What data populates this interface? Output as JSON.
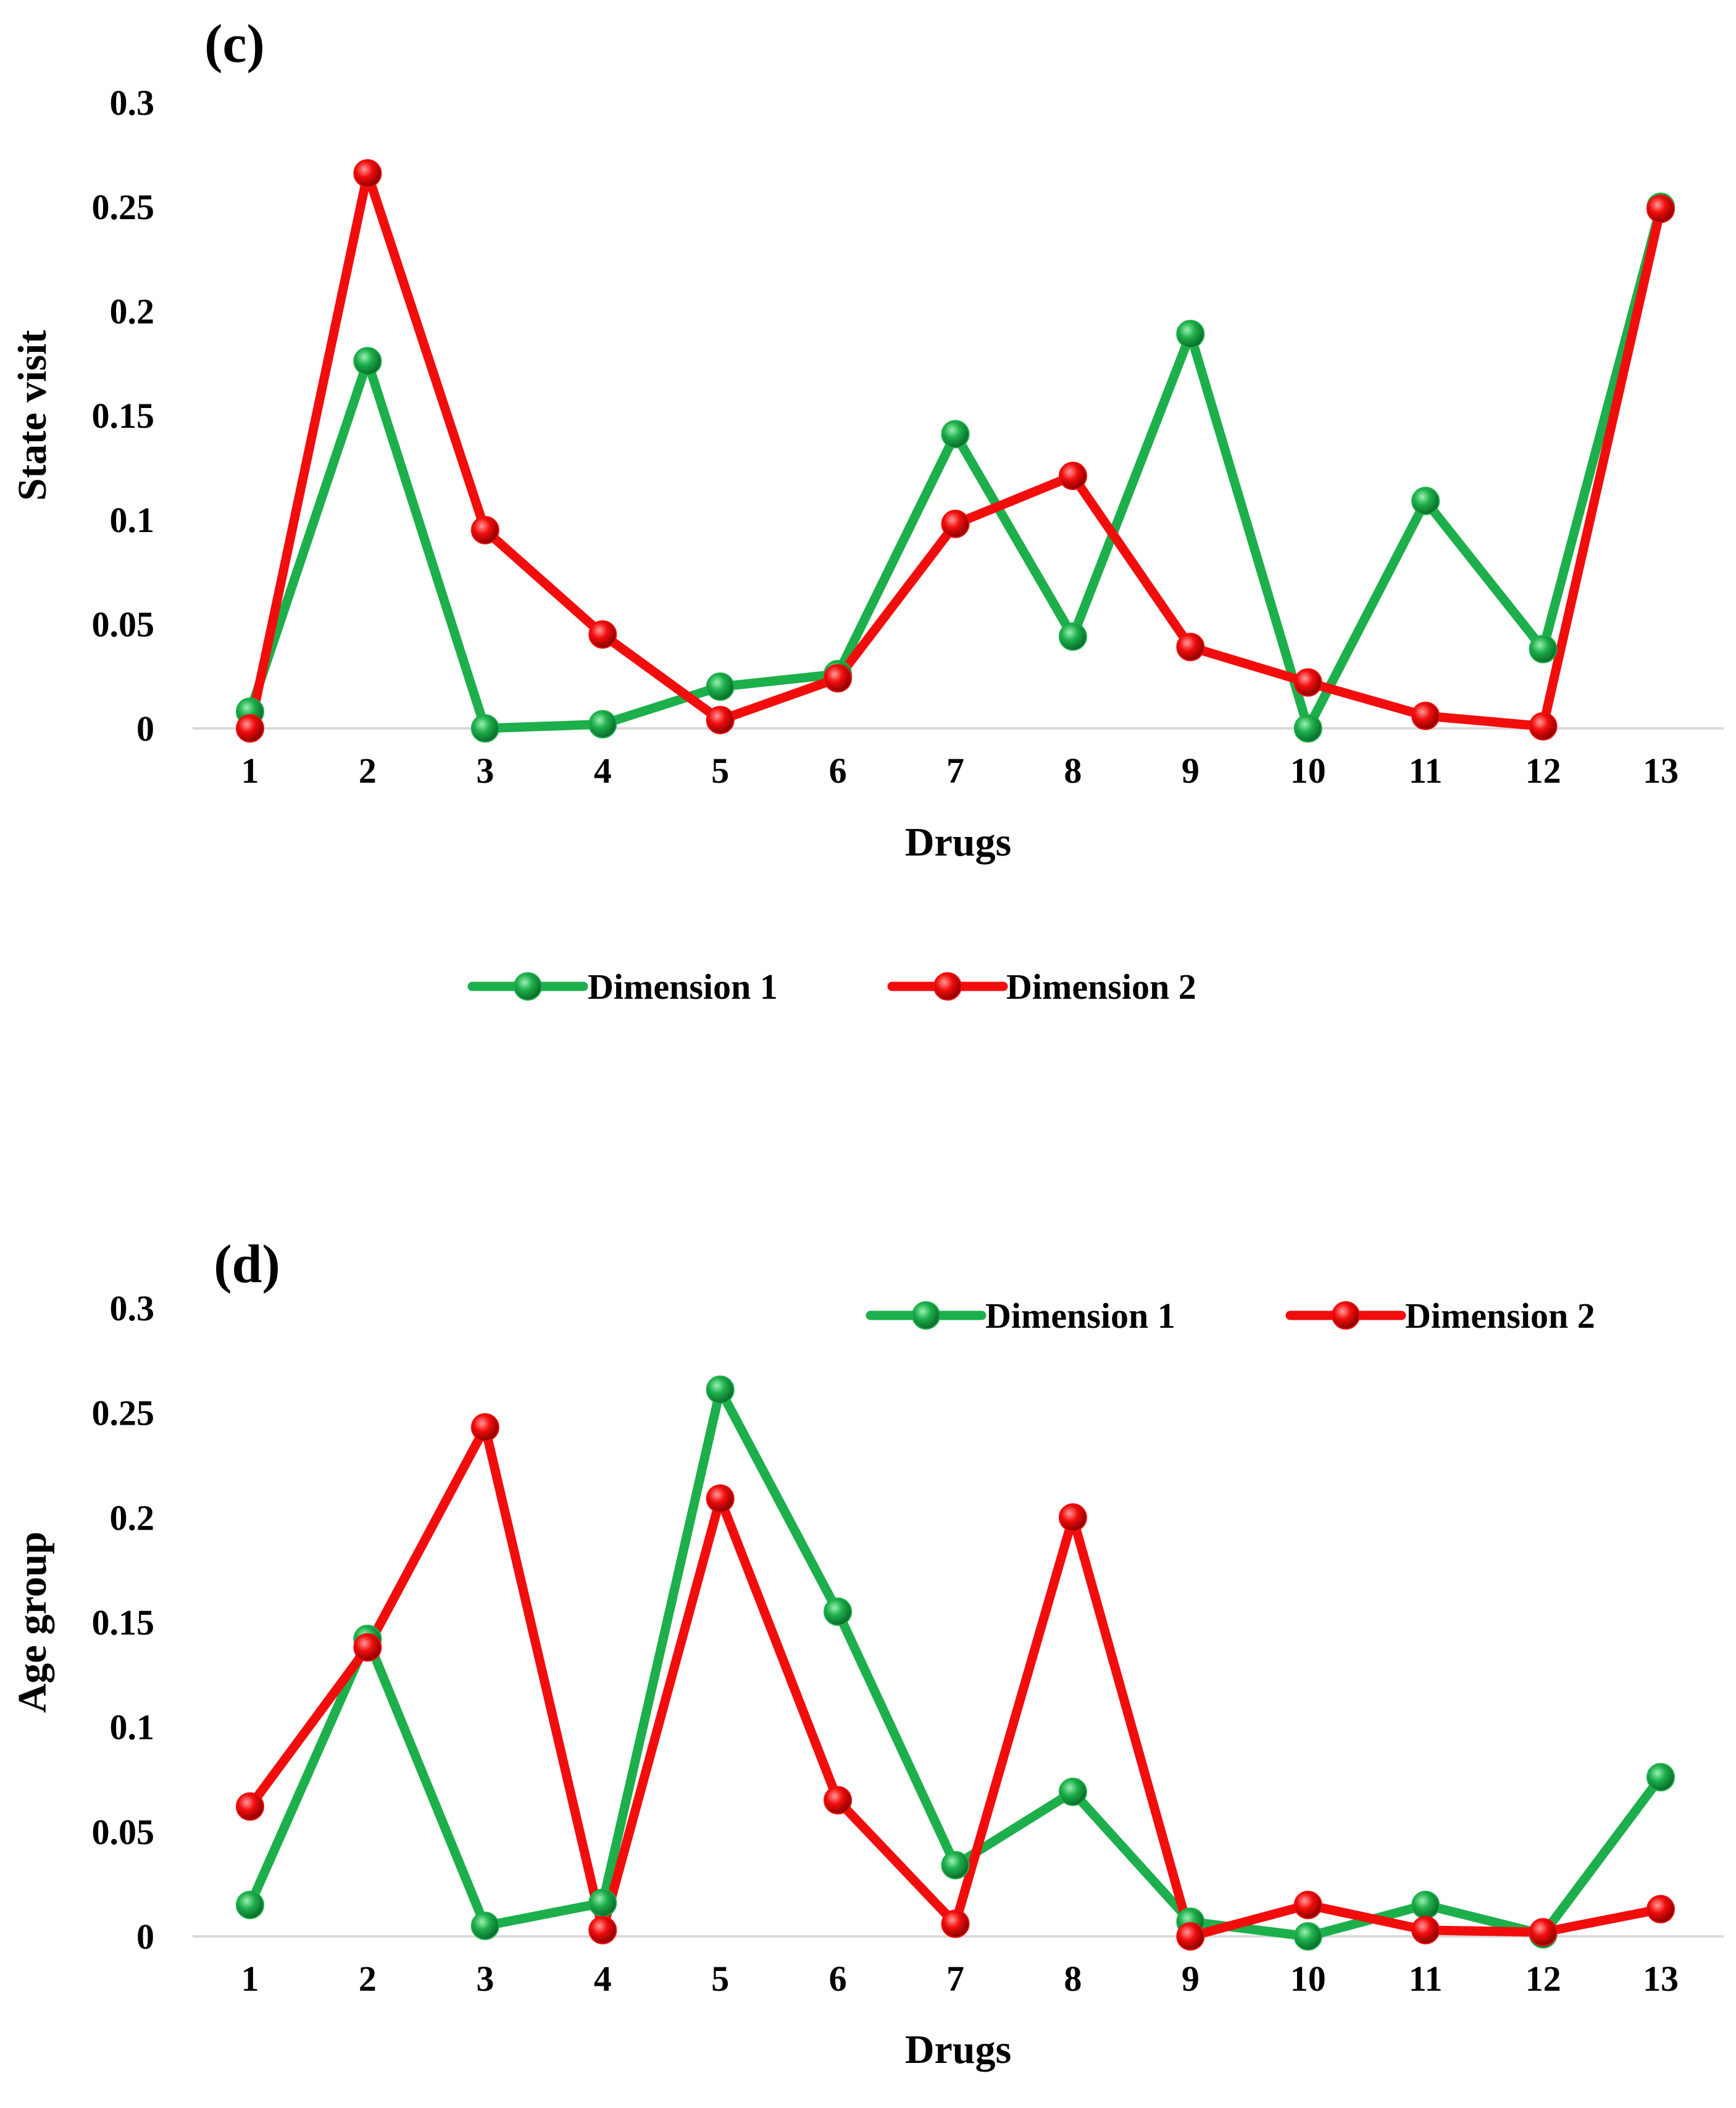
{
  "colors": {
    "dimension1": "#1DAF4B",
    "dimension2": "#F20D0D",
    "axis": "#D9D9D9",
    "text": "#000000"
  },
  "chart_data": [
    {
      "type": "line",
      "panel_label": "(c)",
      "title": "",
      "xlabel": "Drugs",
      "ylabel": "State visit",
      "categories": [
        "1",
        "2",
        "3",
        "4",
        "5",
        "6",
        "7",
        "8",
        "9",
        "10",
        "11",
        "12",
        "13"
      ],
      "yticks": [
        "0",
        "0.05",
        "0.1",
        "0.15",
        "0.2",
        "0.25",
        "0.3"
      ],
      "ylim": [
        0,
        0.3
      ],
      "legend_position": "bottom",
      "series": [
        {
          "name": "Dimension 1",
          "values": [
            0.008,
            0.176,
            0.0,
            0.002,
            0.02,
            0.026,
            0.141,
            0.044,
            0.189,
            0.0,
            0.109,
            0.038,
            0.25
          ]
        },
        {
          "name": "Dimension 2",
          "values": [
            0.0,
            0.266,
            0.095,
            0.045,
            0.004,
            0.024,
            0.098,
            0.121,
            0.039,
            0.022,
            0.006,
            0.001,
            0.249
          ]
        }
      ]
    },
    {
      "type": "line",
      "panel_label": "(d)",
      "title": "",
      "xlabel": "Drugs",
      "ylabel": "Age group",
      "categories": [
        "1",
        "2",
        "3",
        "4",
        "5",
        "6",
        "7",
        "8",
        "9",
        "10",
        "11",
        "12",
        "13"
      ],
      "yticks": [
        "0",
        "0.05",
        "0.1",
        "0.15",
        "0.2",
        "0.25",
        "0.3"
      ],
      "ylim": [
        0,
        0.3
      ],
      "legend_position": "top-right",
      "series": [
        {
          "name": "Dimension 1",
          "values": [
            0.015,
            0.142,
            0.005,
            0.016,
            0.261,
            0.155,
            0.034,
            0.069,
            0.007,
            0.0,
            0.015,
            0.001,
            0.076
          ]
        },
        {
          "name": "Dimension 2",
          "values": [
            0.062,
            0.138,
            0.243,
            0.003,
            0.209,
            0.065,
            0.006,
            0.2,
            0.0,
            0.015,
            0.003,
            0.002,
            0.013
          ]
        }
      ]
    }
  ]
}
